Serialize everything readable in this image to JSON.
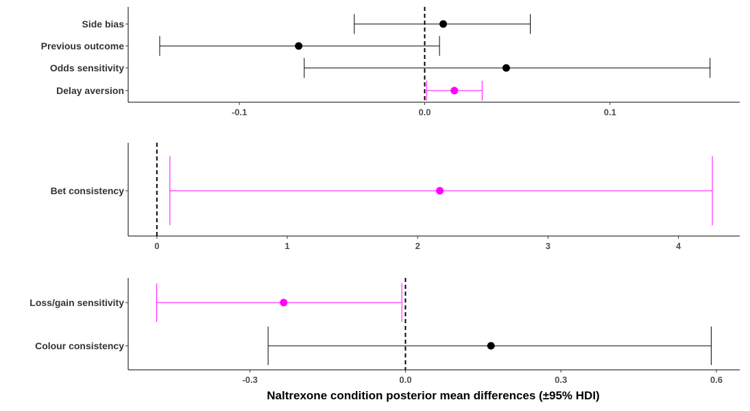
{
  "chart_data": [
    {
      "type": "forest",
      "xlim": [
        -0.16,
        0.17
      ],
      "xticks": [
        -0.1,
        0.0,
        0.1
      ],
      "xtick_labels": [
        "-0.1",
        "0.0",
        "0.1"
      ],
      "reference_line": 0,
      "rows": [
        {
          "label": "Side bias",
          "mean": 0.01,
          "lower": -0.038,
          "upper": 0.057,
          "color": "#000000"
        },
        {
          "label": "Previous outcome",
          "mean": -0.068,
          "lower": -0.143,
          "upper": 0.008,
          "color": "#000000"
        },
        {
          "label": "Odds sensitivity",
          "mean": 0.044,
          "lower": -0.065,
          "upper": 0.154,
          "color": "#000000"
        },
        {
          "label": "Delay aversion",
          "mean": 0.016,
          "lower": 0.001,
          "upper": 0.031,
          "color": "#ff00ff"
        }
      ]
    },
    {
      "type": "forest",
      "xlim": [
        -0.22,
        4.47
      ],
      "xticks": [
        0,
        1,
        2,
        3,
        4
      ],
      "xtick_labels": [
        "0",
        "1",
        "2",
        "3",
        "4"
      ],
      "reference_line": 0,
      "rows": [
        {
          "label": "Bet consistency",
          "mean": 2.17,
          "lower": 0.1,
          "upper": 4.26,
          "color": "#ff00ff"
        }
      ]
    },
    {
      "type": "forest",
      "xlim": [
        -0.535,
        0.645
      ],
      "xticks": [
        -0.3,
        0.0,
        0.3,
        0.6
      ],
      "xtick_labels": [
        "-0.3",
        "0.0",
        "0.3",
        "0.6"
      ],
      "reference_line": 0,
      "rows": [
        {
          "label": "Loss/gain sensitivity",
          "mean": -0.235,
          "lower": -0.48,
          "upper": -0.007,
          "color": "#ff00ff"
        },
        {
          "label": "Colour consistency",
          "mean": 0.165,
          "lower": -0.265,
          "upper": 0.59,
          "color": "#000000"
        }
      ]
    }
  ],
  "xlabel": "Naltrexone condition posterior mean differences (±95% HDI)"
}
